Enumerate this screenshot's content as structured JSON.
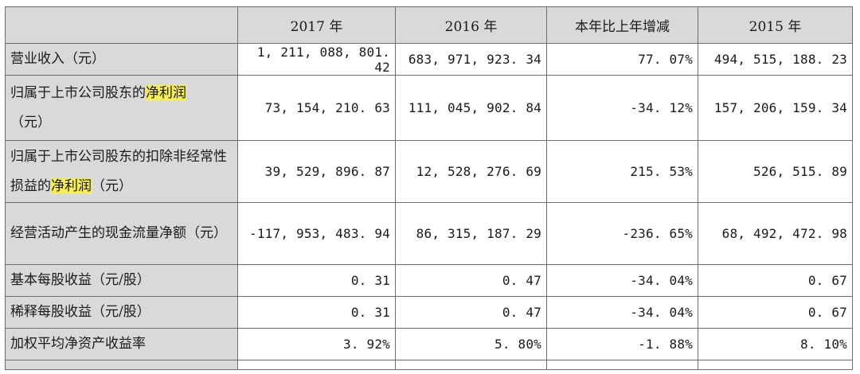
{
  "header": [
    "",
    "2017 年",
    "2016 年",
    "本年比上年增减",
    "2015 年"
  ],
  "rows": [
    {
      "label_parts": [
        "营业收入（元）"
      ],
      "values": [
        "1, 211, 088, 801. 42",
        "683, 971, 923. 34",
        "77. 07%",
        "494, 515, 188. 23"
      ]
    },
    {
      "label_pre": "归属于上市公司股东的",
      "label_hl": "净利润",
      "label_post": "（元）",
      "values": [
        "73, 154, 210. 63",
        "111, 045, 902. 84",
        "-34. 12%",
        "157, 206, 159. 34"
      ]
    },
    {
      "label_pre": "归属于上市公司股东的扣除非经常性损益的",
      "label_hl": "净利润",
      "label_post": "（元）",
      "values": [
        "39, 529, 896. 87",
        "12, 528, 276. 69",
        "215. 53%",
        "526, 515. 89"
      ]
    },
    {
      "label": "经营活动产生的现金流量净额（元）",
      "values": [
        "-117, 953, 483. 94",
        "86, 315, 187. 29",
        "-236. 65%",
        "68, 492, 472. 98"
      ]
    },
    {
      "label": "基本每股收益（元/股）",
      "values": [
        "0. 31",
        "0. 47",
        "-34. 04%",
        "0. 67"
      ]
    },
    {
      "label": "稀释每股收益（元/股）",
      "values": [
        "0. 31",
        "0. 47",
        "-34. 04%",
        "0. 67"
      ]
    },
    {
      "label": "加权平均净资产收益率",
      "values": [
        "3. 92%",
        "5. 80%",
        "-1. 88%",
        "8. 10%"
      ]
    }
  ],
  "colors": {
    "header_bg": "#d9d9d9",
    "highlight": "#f4ec5a",
    "border": "#6e6e6e"
  }
}
